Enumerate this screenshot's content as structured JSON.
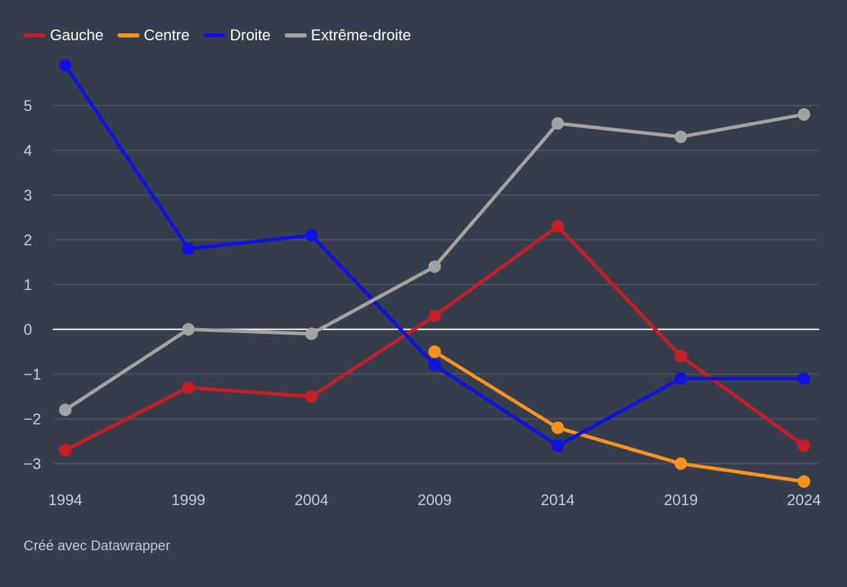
{
  "chart_data": {
    "type": "line",
    "title": "",
    "xlabel": "",
    "ylabel": "",
    "x": [
      "1994",
      "1999",
      "2004",
      "2009",
      "2014",
      "2019",
      "2024"
    ],
    "ylim": [
      -3.4,
      5.9
    ],
    "yticks": [
      5,
      4,
      3,
      2,
      1,
      0,
      -1,
      -2,
      -3
    ],
    "ytick_labels": [
      "5",
      "4",
      "3",
      "2",
      "1",
      "0",
      "−1",
      "−2",
      "−3"
    ],
    "grid": true,
    "legend_position": "top-left",
    "series": [
      {
        "name": "Gauche",
        "color": "#c81e26",
        "values": [
          -2.7,
          -1.3,
          -1.5,
          0.3,
          2.3,
          -0.6,
          -2.6
        ]
      },
      {
        "name": "Centre",
        "color": "#f7931e",
        "values": [
          null,
          null,
          null,
          -0.5,
          -2.2,
          -3.0,
          -3.4
        ]
      },
      {
        "name": "Droite",
        "color": "#1010e0",
        "values": [
          5.9,
          1.8,
          2.1,
          -0.8,
          -2.6,
          -1.1,
          -1.1
        ]
      },
      {
        "name": "Extrême-droite",
        "color": "#a3a3a3",
        "values": [
          -1.8,
          0.0,
          -0.1,
          1.4,
          4.6,
          4.3,
          4.8
        ]
      }
    ]
  },
  "footer": {
    "credit": "Créé avec Datawrapper"
  }
}
